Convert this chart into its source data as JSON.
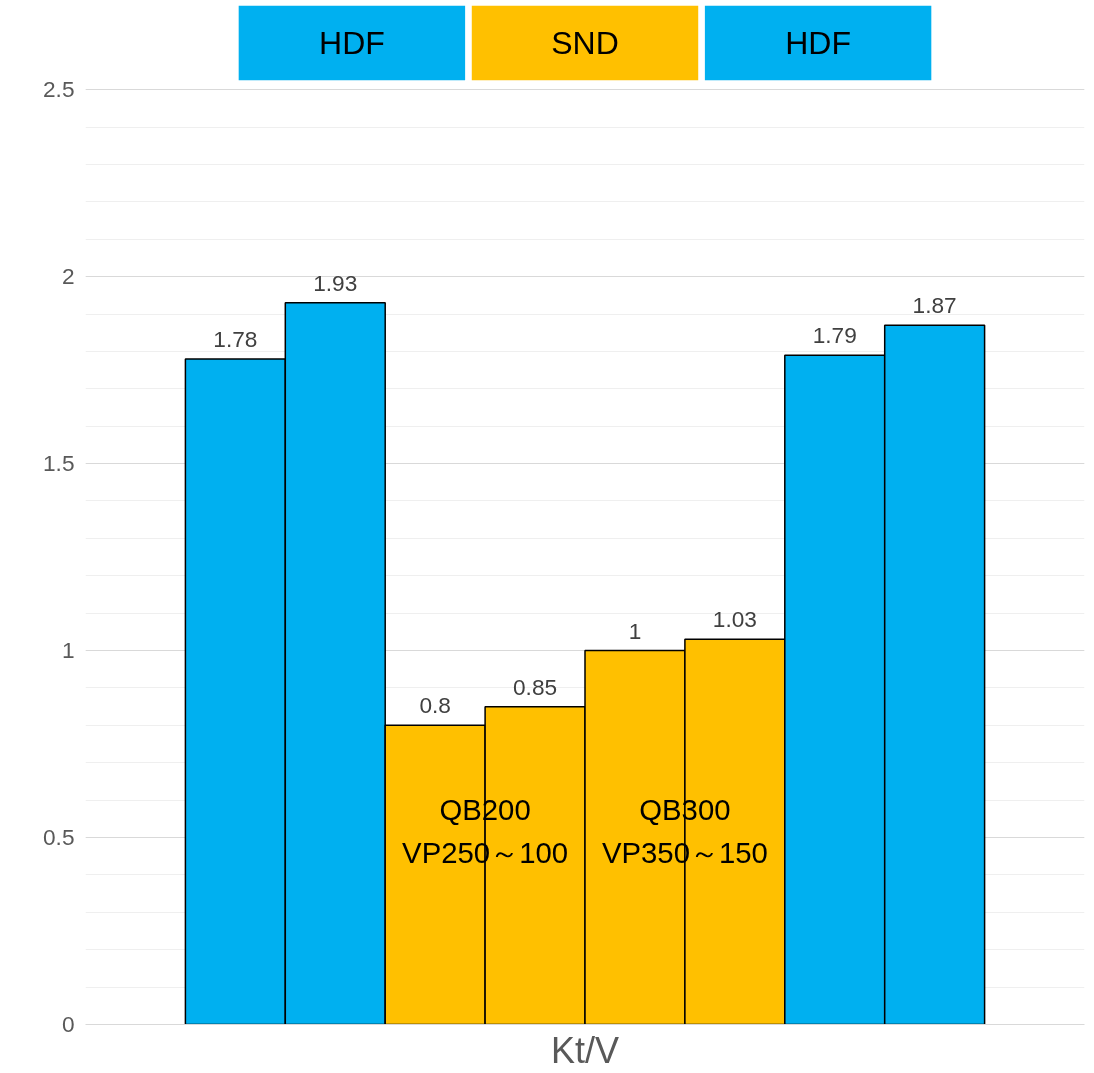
{
  "chart_data": {
    "type": "bar",
    "xlabel": "Kt/V",
    "categories": [
      null,
      null,
      null,
      null,
      null,
      null,
      null,
      null
    ],
    "values": [
      1.78,
      1.93,
      0.8,
      0.85,
      1,
      1.03,
      1.79,
      1.87
    ],
    "colors": [
      "#00b0f0",
      "#00b0f0",
      "#ffc000",
      "#ffc000",
      "#ffc000",
      "#ffc000",
      "#00b0f0",
      "#00b0f0"
    ],
    "ylim": [
      0,
      2.5
    ],
    "yticks": [
      0,
      0.5,
      1,
      1.5,
      2,
      2.5
    ],
    "grid": "y",
    "data_labels": true,
    "annotations": [
      "HDF",
      "SND",
      "HDF",
      "QB200\nVP250～100",
      "QB300\nVP350～150"
    ]
  }
}
